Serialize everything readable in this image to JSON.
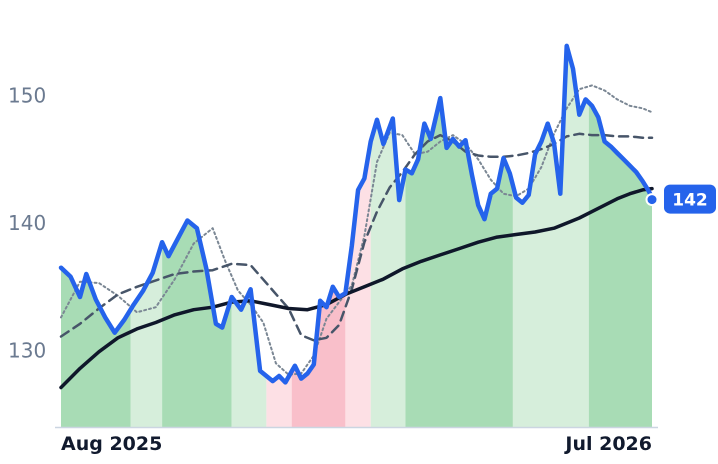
{
  "chart_data": {
    "type": "line",
    "title": "",
    "xlabel": "",
    "ylabel": "",
    "x_ticks": [
      "Aug 2025",
      "Jul 2026"
    ],
    "y_ticks": [
      130,
      140,
      150
    ],
    "ylim": [
      124.0,
      157.5
    ],
    "grid": false,
    "legend": "none",
    "last_value_label": "142",
    "colors": {
      "price": "#2563eb",
      "ma_fast": "#7b8794",
      "ma_mid": "#475569",
      "ma_slow": "#0f172a",
      "up_strong": "#a8dcb5",
      "up_weak": "#d6eedb",
      "down_strong": "#f9bfca",
      "down_weak": "#fde0e5",
      "badge": "#2563eb",
      "axis": "#cbd5e1"
    },
    "x_index_range": [
      0,
      187
    ],
    "series": [
      {
        "key": "price",
        "x": [
          0,
          3,
          6,
          8,
          11,
          14,
          17,
          20,
          23,
          26,
          29,
          32,
          34,
          37,
          40,
          43,
          46,
          49,
          51,
          54,
          57,
          60,
          63,
          65,
          67,
          69,
          71,
          74,
          76,
          78,
          80,
          82,
          84,
          86,
          88,
          90,
          92,
          94,
          96,
          98,
          100,
          102,
          105,
          107,
          109,
          111,
          113,
          115,
          117,
          120,
          122,
          124,
          126,
          128,
          130,
          132,
          134,
          136,
          138,
          140,
          142,
          144,
          146,
          148,
          150,
          152,
          154,
          156,
          158,
          160,
          162,
          164,
          166,
          168,
          170,
          172,
          174,
          176,
          178,
          180,
          182,
          184,
          186,
          187
        ],
        "values": [
          136.5,
          135.8,
          134.2,
          136.0,
          134.0,
          132.6,
          131.4,
          132.4,
          133.6,
          134.7,
          136.1,
          138.5,
          137.4,
          138.8,
          140.2,
          139.6,
          136.4,
          132.1,
          131.8,
          134.2,
          133.2,
          134.8,
          128.4,
          128.0,
          127.6,
          128.0,
          127.5,
          128.8,
          127.8,
          128.2,
          128.9,
          133.9,
          133.4,
          135.0,
          134.2,
          134.5,
          138.2,
          142.6,
          143.5,
          146.4,
          148.1,
          146.2,
          148.2,
          141.8,
          144.2,
          143.9,
          145.0,
          147.8,
          146.6,
          149.8,
          145.9,
          146.6,
          146.0,
          146.5,
          143.8,
          141.4,
          140.3,
          142.3,
          142.7,
          145.1,
          143.9,
          142.0,
          141.6,
          142.2,
          145.4,
          146.4,
          147.8,
          146.3,
          142.3,
          153.9,
          152.1,
          148.5,
          149.7,
          149.2,
          148.3,
          146.4,
          146.0,
          145.5,
          145.0,
          144.5,
          144.0,
          143.3,
          142.5,
          142.0
        ]
      },
      {
        "key": "ma_fast",
        "x": [
          0,
          6,
          12,
          18,
          24,
          30,
          36,
          42,
          48,
          52,
          56,
          60,
          64,
          68,
          72,
          76,
          80,
          84,
          88,
          92,
          96,
          100,
          104,
          108,
          112,
          116,
          120,
          124,
          128,
          132,
          136,
          140,
          144,
          148,
          152,
          156,
          160,
          164,
          168,
          172,
          176,
          180,
          184,
          187
        ],
        "values": [
          132.6,
          135.4,
          135.3,
          134.3,
          133.0,
          133.4,
          135.6,
          138.4,
          139.6,
          137.0,
          134.7,
          133.6,
          132.2,
          129.0,
          128.1,
          128.2,
          129.6,
          132.5,
          133.8,
          135.1,
          139.0,
          144.8,
          147.1,
          146.9,
          145.4,
          145.6,
          146.4,
          146.9,
          146.2,
          145.0,
          143.4,
          142.3,
          142.1,
          142.7,
          144.4,
          147.0,
          149.0,
          150.5,
          150.8,
          150.4,
          149.7,
          149.2,
          149.0,
          148.7
        ]
      },
      {
        "key": "ma_mid",
        "x": [
          0,
          6,
          12,
          18,
          24,
          30,
          36,
          42,
          48,
          54,
          60,
          66,
          72,
          76,
          80,
          84,
          88,
          92,
          96,
          100,
          104,
          108,
          112,
          116,
          120,
          124,
          128,
          132,
          136,
          140,
          144,
          148,
          152,
          156,
          160,
          164,
          168,
          172,
          176,
          180,
          184,
          187
        ],
        "values": [
          131.1,
          132.1,
          133.3,
          134.4,
          135.0,
          135.5,
          136.0,
          136.2,
          136.3,
          136.8,
          136.7,
          135.0,
          133.3,
          131.2,
          130.8,
          131.0,
          132.0,
          134.8,
          138.5,
          140.9,
          142.8,
          144.0,
          145.4,
          146.4,
          146.9,
          146.4,
          145.6,
          145.3,
          145.2,
          145.2,
          145.3,
          145.5,
          145.8,
          146.2,
          146.8,
          147.0,
          146.9,
          146.9,
          146.8,
          146.8,
          146.7,
          146.7
        ]
      },
      {
        "key": "ma_slow",
        "x": [
          0,
          6,
          12,
          18,
          24,
          30,
          36,
          42,
          48,
          54,
          60,
          66,
          72,
          78,
          84,
          90,
          96,
          102,
          108,
          114,
          120,
          126,
          132,
          138,
          144,
          150,
          156,
          160,
          164,
          168,
          172,
          176,
          180,
          184,
          187
        ],
        "values": [
          127.1,
          128.6,
          129.9,
          131.0,
          131.7,
          132.2,
          132.8,
          133.2,
          133.4,
          133.8,
          133.9,
          133.6,
          133.3,
          133.2,
          133.6,
          134.4,
          135.0,
          135.6,
          136.4,
          137.0,
          137.5,
          138.0,
          138.5,
          138.9,
          139.1,
          139.3,
          139.6,
          140.0,
          140.4,
          140.9,
          141.4,
          141.9,
          142.3,
          142.6,
          142.7
        ]
      }
    ],
    "bands": [
      {
        "from": 0,
        "to": 22,
        "state": "up_strong"
      },
      {
        "from": 22,
        "to": 32,
        "state": "up_weak"
      },
      {
        "from": 32,
        "to": 54,
        "state": "up_strong"
      },
      {
        "from": 54,
        "to": 65,
        "state": "up_weak"
      },
      {
        "from": 65,
        "to": 73,
        "state": "down_weak"
      },
      {
        "from": 73,
        "to": 90,
        "state": "down_strong"
      },
      {
        "from": 90,
        "to": 98,
        "state": "down_weak"
      },
      {
        "from": 98,
        "to": 109,
        "state": "up_weak"
      },
      {
        "from": 109,
        "to": 143,
        "state": "up_strong"
      },
      {
        "from": 143,
        "to": 167,
        "state": "up_weak"
      },
      {
        "from": 167,
        "to": 187,
        "state": "up_strong"
      }
    ]
  }
}
